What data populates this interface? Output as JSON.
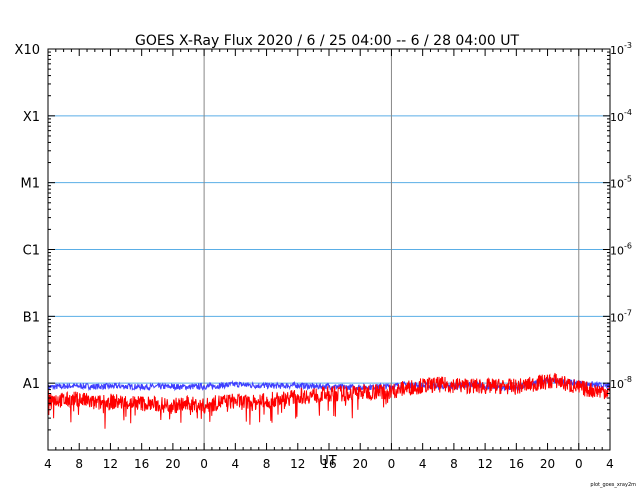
{
  "chart_data": {
    "type": "line",
    "title": "GOES X-Ray Flux   2020 /  6 / 25   04:00 --  6 / 28   04:00   UT",
    "xlabel": "UT",
    "footer": "plot_goes_xray2m",
    "x_hours_span": 72,
    "x_tick_labels": [
      "4",
      "8",
      "12",
      "16",
      "20",
      "0",
      "4",
      "8",
      "12",
      "16",
      "20",
      "0",
      "4",
      "8",
      "12",
      "16",
      "20",
      "0",
      "4"
    ],
    "day_boundary_hours": [
      20,
      44,
      68
    ],
    "y_scale": "log",
    "ylim": [
      1e-09,
      0.001
    ],
    "left_axis_labels": [
      {
        "label": "X10",
        "value": 0.001
      },
      {
        "label": "X1",
        "value": 0.0001
      },
      {
        "label": "M1",
        "value": 1e-05
      },
      {
        "label": "C1",
        "value": 1e-06
      },
      {
        "label": "B1",
        "value": 1e-07
      },
      {
        "label": "A1",
        "value": 1e-08
      }
    ],
    "right_axis_labels": [
      {
        "base": "10",
        "exp": "-3",
        "value": 0.001
      },
      {
        "base": "10",
        "exp": "-4",
        "value": 0.0001
      },
      {
        "base": "10",
        "exp": "-5",
        "value": 1e-05
      },
      {
        "base": "10",
        "exp": "-6",
        "value": 1e-06
      },
      {
        "base": "10",
        "exp": "-7",
        "value": 1e-07
      },
      {
        "base": "10",
        "exp": "-8",
        "value": 1e-08
      }
    ],
    "colors": {
      "long_channel": "#ff0000",
      "short_channel": "#3f3fff",
      "flare_class_grid": "#5aaee6",
      "day_grid": "#888888"
    },
    "series": [
      {
        "color": "#3f3fff",
        "x_hours": [
          0,
          3,
          6,
          9,
          12,
          16,
          18,
          21,
          24,
          27,
          30,
          32,
          34,
          36,
          38,
          42,
          44,
          46,
          48,
          50,
          52,
          54,
          56,
          58,
          60,
          62,
          63,
          64,
          66,
          68,
          70,
          72
        ],
        "values": [
          8.7e-09,
          9.1e-09,
          8.9e-09,
          9e-09,
          8.8e-09,
          8.9e-09,
          8.8e-09,
          9e-09,
          9.6e-09,
          9.2e-09,
          9.1e-09,
          9.3e-09,
          8.9e-09,
          9e-09,
          8.7e-09,
          8.8e-09,
          9e-09,
          9.5e-09,
          9.2e-09,
          9e-09,
          8.9e-09,
          9.6e-09,
          9.1e-09,
          8.5e-09,
          8.6e-09,
          9.6e-09,
          1.05e-08,
          1.1e-08,
          1.05e-08,
          1e-08,
          9.4e-09,
          9e-09
        ]
      },
      {
        "color": "#ff0000",
        "x_hours": [
          0,
          2,
          4,
          6,
          8,
          10,
          12,
          14,
          16,
          18,
          20,
          22,
          24,
          26,
          28,
          30,
          32,
          34,
          36,
          38,
          40,
          42,
          44,
          46,
          48,
          50,
          52,
          54,
          56,
          58,
          60,
          62,
          63,
          64,
          65,
          66,
          68,
          70,
          72
        ],
        "values": [
          6e-09,
          5.5e-09,
          5.8e-09,
          5e-09,
          5.3e-09,
          5.2e-09,
          5e-09,
          4.8e-09,
          4.6e-09,
          4.9e-09,
          4.5e-09,
          5.2e-09,
          5.4e-09,
          5e-09,
          5.5e-09,
          5.8e-09,
          6.3e-09,
          6.6e-09,
          6.9e-09,
          7e-09,
          7.3e-09,
          7.5e-09,
          7.6e-09,
          8.5e-09,
          9.2e-09,
          9.5e-09,
          9.4e-09,
          9.1e-09,
          8.9e-09,
          9e-09,
          8.8e-09,
          9.6e-09,
          1.02e-08,
          1.05e-08,
          1.1e-08,
          1e-08,
          8.5e-09,
          7.8e-09,
          7.5e-09
        ]
      }
    ]
  }
}
